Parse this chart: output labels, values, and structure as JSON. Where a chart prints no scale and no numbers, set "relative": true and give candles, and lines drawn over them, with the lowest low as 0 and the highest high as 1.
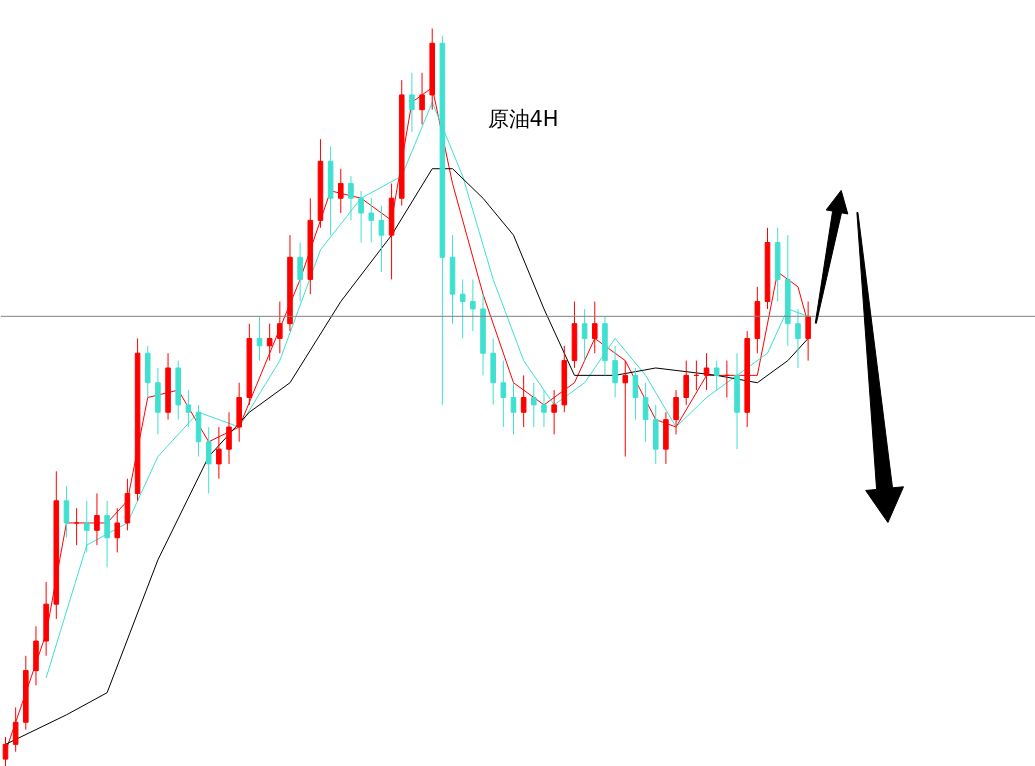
{
  "chart_data": {
    "type": "candlestick",
    "title": "原油4H",
    "relative": true,
    "categories": [
      null,
      null,
      null,
      null,
      null,
      null,
      null,
      null,
      null,
      null,
      null,
      null,
      null,
      null,
      null,
      null,
      null,
      null,
      null,
      null,
      null,
      null,
      null,
      null,
      null,
      null,
      null,
      null,
      null,
      null,
      null,
      null,
      null,
      null,
      null,
      null,
      null,
      null,
      null,
      null,
      null,
      null,
      null,
      null,
      null,
      null,
      null,
      null,
      null,
      null,
      null,
      null,
      null,
      null,
      null,
      null,
      null,
      null,
      null,
      null,
      null,
      null,
      null,
      null,
      null,
      null,
      null,
      null,
      null,
      null,
      null,
      null,
      null,
      null,
      null,
      null,
      null,
      null,
      null,
      null
    ],
    "ohlc": [
      [
        0.01,
        0.04,
        0.0,
        0.03
      ],
      [
        0.03,
        0.08,
        0.02,
        0.06
      ],
      [
        0.06,
        0.15,
        0.05,
        0.13
      ],
      [
        0.13,
        0.19,
        0.11,
        0.17
      ],
      [
        0.17,
        0.25,
        0.15,
        0.22
      ],
      [
        0.22,
        0.4,
        0.2,
        0.36
      ],
      [
        0.36,
        0.38,
        0.31,
        0.33
      ],
      [
        0.33,
        0.35,
        0.3,
        0.33
      ],
      [
        0.33,
        0.36,
        0.29,
        0.32
      ],
      [
        0.32,
        0.37,
        0.3,
        0.34
      ],
      [
        0.34,
        0.36,
        0.27,
        0.31
      ],
      [
        0.31,
        0.35,
        0.29,
        0.33
      ],
      [
        0.33,
        0.39,
        0.32,
        0.37
      ],
      [
        0.37,
        0.58,
        0.36,
        0.56
      ],
      [
        0.56,
        0.57,
        0.5,
        0.52
      ],
      [
        0.52,
        0.54,
        0.45,
        0.48
      ],
      [
        0.48,
        0.56,
        0.47,
        0.54
      ],
      [
        0.54,
        0.55,
        0.47,
        0.49
      ],
      [
        0.49,
        0.51,
        0.46,
        0.48
      ],
      [
        0.48,
        0.49,
        0.42,
        0.44
      ],
      [
        0.44,
        0.46,
        0.37,
        0.41
      ],
      [
        0.41,
        0.46,
        0.39,
        0.43
      ],
      [
        0.43,
        0.48,
        0.41,
        0.46
      ],
      [
        0.46,
        0.52,
        0.44,
        0.5
      ],
      [
        0.5,
        0.6,
        0.49,
        0.58
      ],
      [
        0.58,
        0.61,
        0.55,
        0.57
      ],
      [
        0.57,
        0.6,
        0.55,
        0.58
      ],
      [
        0.58,
        0.63,
        0.56,
        0.6
      ],
      [
        0.6,
        0.72,
        0.59,
        0.69
      ],
      [
        0.69,
        0.71,
        0.63,
        0.66
      ],
      [
        0.66,
        0.77,
        0.64,
        0.74
      ],
      [
        0.74,
        0.85,
        0.73,
        0.82
      ],
      [
        0.82,
        0.84,
        0.72,
        0.77
      ],
      [
        0.77,
        0.81,
        0.75,
        0.79
      ],
      [
        0.79,
        0.8,
        0.74,
        0.77
      ],
      [
        0.77,
        0.78,
        0.71,
        0.75
      ],
      [
        0.75,
        0.77,
        0.71,
        0.74
      ],
      [
        0.74,
        0.76,
        0.67,
        0.72
      ],
      [
        0.72,
        0.79,
        0.66,
        0.77
      ],
      [
        0.77,
        0.93,
        0.76,
        0.91
      ],
      [
        0.91,
        0.94,
        0.86,
        0.89
      ],
      [
        0.89,
        0.94,
        0.87,
        0.91
      ],
      [
        0.91,
        1.0,
        0.89,
        0.98
      ],
      [
        0.98,
        0.99,
        0.49,
        0.69
      ],
      [
        0.69,
        0.72,
        0.6,
        0.64
      ],
      [
        0.64,
        0.66,
        0.58,
        0.63
      ],
      [
        0.63,
        0.66,
        0.59,
        0.62
      ],
      [
        0.62,
        0.64,
        0.53,
        0.56
      ],
      [
        0.56,
        0.58,
        0.49,
        0.52
      ],
      [
        0.52,
        0.55,
        0.46,
        0.5
      ],
      [
        0.5,
        0.52,
        0.45,
        0.48
      ],
      [
        0.48,
        0.53,
        0.46,
        0.5
      ],
      [
        0.5,
        0.52,
        0.46,
        0.49
      ],
      [
        0.49,
        0.51,
        0.46,
        0.48
      ],
      [
        0.48,
        0.51,
        0.45,
        0.49
      ],
      [
        0.49,
        0.57,
        0.48,
        0.55
      ],
      [
        0.55,
        0.63,
        0.54,
        0.6
      ],
      [
        0.6,
        0.62,
        0.55,
        0.58
      ],
      [
        0.58,
        0.63,
        0.56,
        0.6
      ],
      [
        0.6,
        0.61,
        0.53,
        0.55
      ],
      [
        0.55,
        0.57,
        0.5,
        0.52
      ],
      [
        0.52,
        0.55,
        0.42,
        0.53
      ],
      [
        0.53,
        0.54,
        0.47,
        0.5
      ],
      [
        0.5,
        0.52,
        0.44,
        0.47
      ],
      [
        0.47,
        0.49,
        0.41,
        0.43
      ],
      [
        0.43,
        0.48,
        0.41,
        0.47
      ],
      [
        0.47,
        0.51,
        0.45,
        0.5
      ],
      [
        0.5,
        0.55,
        0.49,
        0.53
      ],
      [
        0.53,
        0.55,
        0.51,
        0.53
      ],
      [
        0.53,
        0.56,
        0.51,
        0.54
      ],
      [
        0.54,
        0.55,
        0.51,
        0.53
      ],
      [
        0.53,
        0.55,
        0.5,
        0.53
      ],
      [
        0.53,
        0.56,
        0.43,
        0.48
      ],
      [
        0.48,
        0.59,
        0.46,
        0.58
      ],
      [
        0.58,
        0.65,
        0.56,
        0.63
      ],
      [
        0.63,
        0.73,
        0.62,
        0.71
      ],
      [
        0.71,
        0.73,
        0.63,
        0.66
      ],
      [
        0.66,
        0.72,
        0.57,
        0.6
      ],
      [
        0.6,
        0.62,
        0.54,
        0.58
      ],
      [
        0.58,
        0.63,
        0.55,
        0.61
      ]
    ],
    "series": [
      {
        "type": "line",
        "color": "#ff0000",
        "values": [
          0.02,
          null,
          null,
          null,
          0.18,
          null,
          0.33,
          null,
          null,
          null,
          0.33,
          null,
          0.36,
          null,
          0.5,
          null,
          null,
          0.51,
          null,
          null,
          0.44,
          null,
          null,
          0.46,
          null,
          null,
          0.56,
          null,
          null,
          0.66,
          null,
          null,
          0.78,
          null,
          null,
          0.77,
          null,
          null,
          0.74,
          null,
          0.9,
          null,
          0.92,
          null,
          0.79,
          null,
          null,
          0.64,
          null,
          null,
          0.52,
          null,
          null,
          0.49,
          null,
          null,
          0.52,
          null,
          0.58,
          null,
          null,
          0.55,
          null,
          null,
          0.47,
          null,
          0.46,
          null,
          null,
          0.53,
          null,
          null,
          0.53,
          null,
          0.53,
          null,
          0.67,
          null,
          0.65,
          0.6
        ]
      },
      {
        "type": "line",
        "color": "#40e0d0",
        "values": [
          null,
          null,
          null,
          null,
          0.12,
          null,
          null,
          null,
          0.3,
          null,
          null,
          null,
          0.33,
          null,
          null,
          0.42,
          null,
          null,
          null,
          0.48,
          null,
          null,
          null,
          0.46,
          null,
          null,
          null,
          0.55,
          null,
          null,
          null,
          0.7,
          null,
          null,
          null,
          0.77,
          null,
          null,
          null,
          0.8,
          null,
          null,
          0.9,
          null,
          null,
          0.8,
          null,
          null,
          0.66,
          null,
          null,
          0.55,
          null,
          null,
          0.49,
          null,
          null,
          0.52,
          null,
          null,
          0.58,
          null,
          null,
          0.53,
          null,
          null,
          0.46,
          null,
          null,
          0.5,
          null,
          null,
          0.53,
          null,
          null,
          0.56,
          null,
          0.62,
          null,
          0.61
        ]
      },
      {
        "type": "line",
        "color": "#000000",
        "values": [
          0.03,
          null,
          null,
          null,
          null,
          null,
          0.07,
          null,
          null,
          null,
          0.1,
          null,
          null,
          null,
          null,
          0.28,
          null,
          null,
          null,
          null,
          0.42,
          null,
          null,
          null,
          0.48,
          null,
          null,
          null,
          0.52,
          null,
          null,
          null,
          null,
          0.63,
          null,
          null,
          null,
          null,
          0.72,
          null,
          null,
          null,
          0.81,
          null,
          0.81,
          null,
          null,
          0.77,
          null,
          null,
          0.72,
          null,
          null,
          0.62,
          null,
          null,
          0.53,
          null,
          null,
          null,
          0.53,
          null,
          null,
          null,
          0.54,
          null,
          null,
          null,
          null,
          null,
          0.53,
          null,
          null,
          null,
          0.52,
          null,
          null,
          0.55,
          null,
          0.58
        ]
      }
    ],
    "ref_lines": [
      {
        "axis": "y",
        "value": 0.61,
        "color": "#808080"
      }
    ]
  }
}
